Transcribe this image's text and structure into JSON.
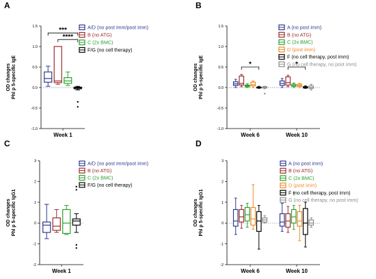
{
  "chart_data": [
    {
      "panel_label": "A",
      "type": "box",
      "ylabel": [
        "OD changes",
        "Phl p 5-specific IgE"
      ],
      "ylim": [
        -1.0,
        1.5
      ],
      "yticks": [
        "-1.0",
        "-0.5",
        "0.0",
        "0.5",
        "1.0",
        "1.5"
      ],
      "reference_line_y": 0,
      "categories": [
        "Week 1"
      ],
      "legend": [
        "A/D (no post imm/post imm)",
        "B (no ATG)",
        "C (2x BMC)",
        "F/G (no cell therapy)"
      ],
      "series": [
        {
          "name": "A/D (no post imm/post imm)",
          "color": "#2b3990",
          "boxes": [
            {
              "category": "Week 1",
              "min": 0.03,
              "q1": 0.13,
              "median": 0.22,
              "q3": 0.38,
              "max": 0.52,
              "outliers": []
            }
          ]
        },
        {
          "name": "B (no ATG)",
          "color": "#9e2a2b",
          "boxes": [
            {
              "category": "Week 1",
              "min": 0.08,
              "q1": 0.12,
              "median": 0.16,
              "q3": 1.0,
              "max": 1.0,
              "outliers": []
            }
          ]
        },
        {
          "name": "C (2x BMC)",
          "color": "#2aa02b",
          "boxes": [
            {
              "category": "Week 1",
              "min": 0.05,
              "q1": 0.1,
              "median": 0.16,
              "q3": 0.24,
              "max": 0.38,
              "outliers": []
            }
          ]
        },
        {
          "name": "F/G (no cell therapy)",
          "color": "#000000",
          "boxes": [
            {
              "category": "Week 1",
              "min": -0.06,
              "q1": -0.03,
              "median": -0.01,
              "q3": 0.01,
              "max": 0.03,
              "outliers": [
                -0.35,
                -0.47
              ]
            }
          ]
        }
      ],
      "significance": [
        {
          "label": "***",
          "from_series": 0,
          "to_series": 3,
          "y": 1.33
        },
        {
          "label": "****",
          "from_series": 1,
          "to_series": 3,
          "y": 1.17
        }
      ]
    },
    {
      "panel_label": "B",
      "type": "box",
      "ylabel": [
        "OD changes",
        "Phl p 5-specific IgE"
      ],
      "ylim": [
        -1.0,
        1.5
      ],
      "yticks": [
        "-1.0",
        "-0.5",
        "0.0",
        "0.5",
        "1.0",
        "1.5"
      ],
      "reference_line_y": 0,
      "categories": [
        "Week 6",
        "Week 10"
      ],
      "legend": [
        "A (no post imm)",
        "B (no ATG)",
        "C (2x BMC)",
        "D (post imm)",
        "F (no cell therapy,  post imm)",
        "G (no cell therapy,  no post imm)"
      ],
      "series": [
        {
          "name": "A (no post imm)",
          "color": "#2b3990",
          "boxes": [
            {
              "category": "Week 6",
              "min": 0.0,
              "q1": 0.05,
              "median": 0.09,
              "q3": 0.14,
              "max": 0.2,
              "outliers": []
            },
            {
              "category": "Week 10",
              "min": 0.0,
              "q1": 0.05,
              "median": 0.1,
              "q3": 0.16,
              "max": 0.22,
              "outliers": []
            }
          ]
        },
        {
          "name": "B (no ATG)",
          "color": "#9e2a2b",
          "boxes": [
            {
              "category": "Week 6",
              "min": 0.02,
              "q1": 0.06,
              "median": 0.1,
              "q3": 0.28,
              "max": 0.32,
              "outliers": []
            },
            {
              "category": "Week 10",
              "min": 0.02,
              "q1": 0.06,
              "median": 0.12,
              "q3": 0.26,
              "max": 0.3,
              "outliers": []
            }
          ]
        },
        {
          "name": "C (2x BMC)",
          "color": "#2aa02b",
          "boxes": [
            {
              "category": "Week 6",
              "min": 0.0,
              "q1": 0.02,
              "median": 0.04,
              "q3": 0.06,
              "max": 0.09,
              "outliers": []
            },
            {
              "category": "Week 10",
              "min": 0.0,
              "q1": 0.03,
              "median": 0.05,
              "q3": 0.08,
              "max": 0.11,
              "outliers": []
            }
          ]
        },
        {
          "name": "D (post imm)",
          "color": "#f08a24",
          "boxes": [
            {
              "category": "Week 6",
              "min": 0.0,
              "q1": 0.04,
              "median": 0.07,
              "q3": 0.13,
              "max": 0.16,
              "outliers": []
            },
            {
              "category": "Week 10",
              "min": 0.0,
              "q1": 0.03,
              "median": 0.05,
              "q3": 0.08,
              "max": 0.1,
              "outliers": []
            }
          ]
        },
        {
          "name": "F (no cell therapy,  post imm)",
          "color": "#000000",
          "boxes": [
            {
              "category": "Week 6",
              "min": -0.02,
              "q1": -0.01,
              "median": 0.0,
              "q3": 0.01,
              "max": 0.03,
              "outliers": []
            },
            {
              "category": "Week 10",
              "min": -0.02,
              "q1": -0.01,
              "median": 0.0,
              "q3": 0.02,
              "max": 0.04,
              "outliers": []
            }
          ]
        },
        {
          "name": "G (no cell therapy,  no post imm)",
          "color": "#8c8c8c",
          "boxes": [
            {
              "category": "Week 6",
              "min": -0.03,
              "q1": -0.01,
              "median": 0.0,
              "q3": 0.02,
              "max": 0.03,
              "outliers": [
                -0.15
              ]
            },
            {
              "category": "Week 10",
              "min": -0.06,
              "q1": -0.02,
              "median": 0.0,
              "q3": 0.04,
              "max": 0.08,
              "outliers": []
            }
          ]
        }
      ],
      "significance": [
        {
          "label": "*",
          "category": "Week 6",
          "from_series": 1,
          "to_series": 4,
          "y": 0.5
        },
        {
          "label": "*",
          "category": "Week 10",
          "from_series": 1,
          "to_series": 4,
          "y": 0.5
        }
      ]
    },
    {
      "panel_label": "C",
      "type": "box",
      "ylabel": [
        "OD changes",
        "Phl p 5-specific IgG1"
      ],
      "ylim": [
        -2,
        3
      ],
      "yticks": [
        "-2",
        "-1",
        "0",
        "1",
        "2",
        "3"
      ],
      "reference_line_y": 0,
      "categories": [
        "Week 1"
      ],
      "legend": [
        "A/D (no post imm/post imm)",
        "B (no ATG)",
        "C (2x BMC)",
        "F/G (no cell therapy)"
      ],
      "series": [
        {
          "name": "A/D (no post imm/post imm)",
          "color": "#2b3990",
          "boxes": [
            {
              "category": "Week 1",
              "min": -0.75,
              "q1": -0.45,
              "median": -0.1,
              "q3": 0.05,
              "max": 0.9,
              "outliers": []
            }
          ]
        },
        {
          "name": "B (no ATG)",
          "color": "#9e2a2b",
          "boxes": [
            {
              "category": "Week 1",
              "min": -0.45,
              "q1": -0.35,
              "median": -0.15,
              "q3": 0.25,
              "max": 0.65,
              "outliers": []
            }
          ]
        },
        {
          "name": "C (2x BMC)",
          "color": "#2aa02b",
          "boxes": [
            {
              "category": "Week 1",
              "min": -0.55,
              "q1": -0.5,
              "median": 0.0,
              "q3": 0.65,
              "max": 0.85,
              "outliers": []
            }
          ]
        },
        {
          "name": "F/G (no cell therapy)",
          "color": "#000000",
          "boxes": [
            {
              "category": "Week 1",
              "min": -0.45,
              "q1": -0.1,
              "median": 0.1,
              "q3": 0.2,
              "max": 0.45,
              "outliers": [
                1.75,
                1.6,
                -1.05,
                -1.2
              ]
            }
          ]
        }
      ]
    },
    {
      "panel_label": "D",
      "type": "box",
      "ylabel": [
        "OD changes",
        "Phl p 5-specific IgG1"
      ],
      "ylim": [
        -2,
        3
      ],
      "yticks": [
        "-2",
        "-1",
        "0",
        "1",
        "2",
        "3"
      ],
      "reference_line_y": 0,
      "categories": [
        "Week 6",
        "Week 10"
      ],
      "legend": [
        "A (no post imm)",
        "B (no ATG)",
        "C (2x BMC)",
        "D (post imm)",
        "F (no cell therapy, post imm)",
        "G (no cell therapy, no post imm)"
      ],
      "series": [
        {
          "name": "A (no post imm)",
          "color": "#2b3990",
          "boxes": [
            {
              "category": "Week 6",
              "min": -0.55,
              "q1": -0.15,
              "median": 0.1,
              "q3": 0.65,
              "max": 1.2,
              "outliers": []
            },
            {
              "category": "Week 10",
              "min": -0.4,
              "q1": -0.15,
              "median": 0.05,
              "q3": 0.45,
              "max": 0.95,
              "outliers": []
            }
          ]
        },
        {
          "name": "B (no ATG)",
          "color": "#9e2a2b",
          "boxes": [
            {
              "category": "Week 6",
              "min": -0.25,
              "q1": 0.05,
              "median": 0.3,
              "q3": 0.65,
              "max": 0.85,
              "outliers": []
            },
            {
              "category": "Week 10",
              "min": -0.45,
              "q1": -0.2,
              "median": 0.1,
              "q3": 0.45,
              "max": 0.8,
              "outliers": []
            }
          ]
        },
        {
          "name": "C (2x BMC)",
          "color": "#2aa02b",
          "boxes": [
            {
              "category": "Week 6",
              "min": -0.2,
              "q1": 0.1,
              "median": 0.4,
              "q3": 0.75,
              "max": 0.95,
              "outliers": []
            },
            {
              "category": "Week 10",
              "min": -0.3,
              "q1": 0.0,
              "median": 0.3,
              "q3": 0.65,
              "max": 0.85,
              "outliers": [
                1.45
              ]
            }
          ]
        },
        {
          "name": "D (post imm)",
          "color": "#f08a24",
          "boxes": [
            {
              "category": "Week 6",
              "min": -0.3,
              "q1": -0.1,
              "median": 0.2,
              "q3": 0.75,
              "max": 1.85,
              "outliers": []
            },
            {
              "category": "Week 10",
              "min": -0.85,
              "q1": -0.15,
              "median": 0.1,
              "q3": 0.55,
              "max": 0.85,
              "outliers": []
            }
          ]
        },
        {
          "name": "F (no cell therapy, post imm)",
          "color": "#000000",
          "boxes": [
            {
              "category": "Week 6",
              "min": -1.25,
              "q1": -0.4,
              "median": 0.1,
              "q3": 0.55,
              "max": 0.85,
              "outliers": []
            },
            {
              "category": "Week 10",
              "min": -1.15,
              "q1": -0.55,
              "median": 0.0,
              "q3": 0.7,
              "max": 1.0,
              "outliers": []
            }
          ]
        },
        {
          "name": "G (no cell therapy, no post imm)",
          "color": "#8c8c8c",
          "boxes": [
            {
              "category": "Week 6",
              "min": 0.0,
              "q1": 0.05,
              "median": 0.15,
              "q3": 0.25,
              "max": 0.35,
              "outliers": []
            },
            {
              "category": "Week 10",
              "min": -0.2,
              "q1": -0.1,
              "median": 0.0,
              "q3": 0.15,
              "max": 0.25,
              "outliers": []
            }
          ]
        }
      ]
    }
  ]
}
